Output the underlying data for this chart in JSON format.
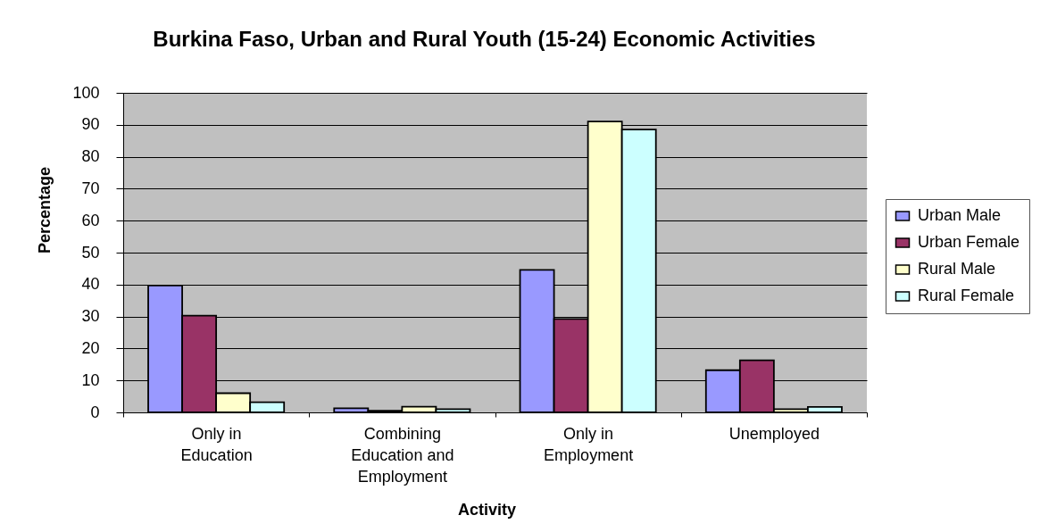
{
  "chart_data": {
    "type": "bar",
    "title": "Burkina Faso, Urban and Rural Youth (15-24) Economic Activities",
    "xlabel": "Activity",
    "ylabel": "Percentage",
    "categories": [
      "Only in Education",
      "Combining Education and Employment",
      "Only in Employment",
      "Unemployed"
    ],
    "series": [
      {
        "name": "Urban Male",
        "color": "#9999ff",
        "values": [
          39.7,
          1.3,
          44.6,
          13.2
        ]
      },
      {
        "name": "Urban Female",
        "color": "#993366",
        "values": [
          30.3,
          0.5,
          29.2,
          16.3
        ]
      },
      {
        "name": "Rural Male",
        "color": "#ffffcc",
        "values": [
          6.0,
          1.8,
          91.0,
          1.0
        ]
      },
      {
        "name": "Rural Female",
        "color": "#ccffff",
        "values": [
          3.2,
          1.0,
          88.5,
          1.7
        ]
      }
    ],
    "ylim": [
      0,
      100
    ],
    "yticks": [
      0,
      10,
      20,
      30,
      40,
      50,
      60,
      70,
      80,
      90,
      100
    ],
    "grid": "y",
    "legend": "right"
  }
}
